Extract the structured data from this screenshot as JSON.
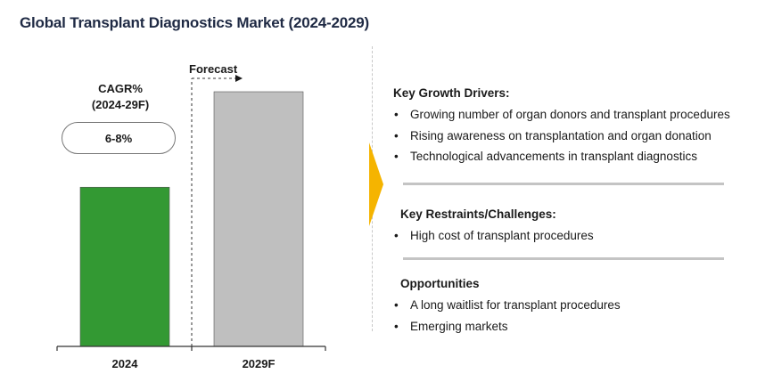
{
  "title": "Global Transplant Diagnostics Market (2024-2029)",
  "chart_data": {
    "type": "bar",
    "title": "Global Transplant Diagnostics Market (2024-2029)",
    "categories": [
      "2024",
      "2029F"
    ],
    "values": [
      1.0,
      1.6
    ],
    "value_unit": "relative (no axis values shown)",
    "colors": [
      "#339933",
      "#bfbfbf"
    ],
    "forecast_label": "Forecast",
    "forecast_start_category": "2029F",
    "cagr": {
      "label_line1": "CAGR%",
      "label_line2": "(2024-29F)",
      "value": "6-8%"
    },
    "xlabel": "",
    "ylabel": "",
    "grid": false,
    "legend": "none"
  },
  "panel": {
    "accent_color": "#f5b400",
    "sections": [
      {
        "heading": "Key Growth Drivers:",
        "items": [
          "Growing number of organ donors and transplant procedures",
          "Rising awareness on transplantation and organ donation",
          "Technological advancements in transplant diagnostics"
        ]
      },
      {
        "heading": "Key Restraints/Challenges:",
        "items": [
          "High cost of transplant procedures"
        ]
      },
      {
        "heading": "Opportunities",
        "items": [
          "A long waitlist for transplant procedures",
          "Emerging markets"
        ]
      }
    ]
  }
}
